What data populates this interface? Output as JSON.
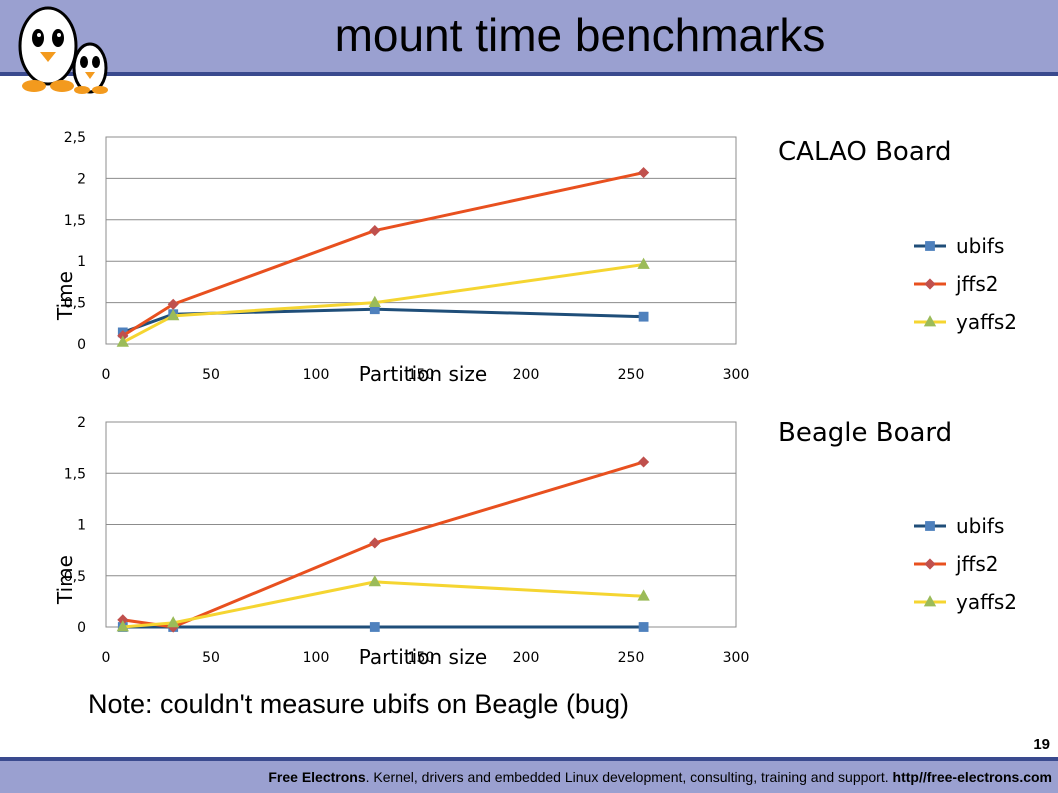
{
  "slide": {
    "title": "mount time benchmarks",
    "note": "Note: couldn't measure ubifs on Beagle (bug)",
    "slide_number": "19",
    "footer": {
      "brand": "Free Electrons",
      "text": ". Kernel, drivers and embedded Linux development, consulting, training and support. ",
      "url": "http//free-electrons.com"
    }
  },
  "colors": {
    "header_bg": "#9aa0d0",
    "header_rule": "#3a4a8e",
    "ubifs_line": "#1f4e79",
    "ubifs_marker": "#4f81bd",
    "jffs2_line": "#e8501f",
    "jffs2_marker": "#c0504d",
    "yaffs2_line": "#f5d531",
    "yaffs2_marker": "#9bbb59"
  },
  "chart_data": [
    {
      "type": "scatter",
      "board_title": "CALAO Board",
      "xlabel": "Partition size",
      "ylabel": "Time",
      "xlim": [
        0,
        300
      ],
      "ylim": [
        0,
        2.5
      ],
      "x_ticks": [
        "0",
        "50",
        "100",
        "150",
        "200",
        "250",
        "300"
      ],
      "y_ticks": [
        "0",
        "0,5",
        "1",
        "1,5",
        "2",
        "2,5"
      ],
      "grid": true,
      "legend_position": "right",
      "series": [
        {
          "name": "ubifs",
          "x": [
            8,
            32,
            128,
            256
          ],
          "y": [
            0.14,
            0.36,
            0.42,
            0.33
          ]
        },
        {
          "name": "jffs2",
          "x": [
            8,
            32,
            128,
            256
          ],
          "y": [
            0.1,
            0.48,
            1.37,
            2.07
          ]
        },
        {
          "name": "yaffs2",
          "x": [
            8,
            32,
            128,
            256
          ],
          "y": [
            0.02,
            0.34,
            0.5,
            0.96
          ]
        }
      ]
    },
    {
      "type": "scatter",
      "board_title": "Beagle Board",
      "xlabel": "Partition size",
      "ylabel": "Time",
      "xlim": [
        0,
        300
      ],
      "ylim": [
        0,
        2
      ],
      "x_ticks": [
        "0",
        "50",
        "100",
        "150",
        "200",
        "250",
        "300"
      ],
      "y_ticks": [
        "0",
        "0,5",
        "1",
        "1,5",
        "2"
      ],
      "grid": true,
      "legend_position": "right",
      "series": [
        {
          "name": "ubifs",
          "x": [
            8,
            32,
            128,
            256
          ],
          "y": [
            0,
            0,
            0,
            0
          ]
        },
        {
          "name": "jffs2",
          "x": [
            8,
            32,
            128,
            256
          ],
          "y": [
            0.07,
            0.0,
            0.82,
            1.61
          ]
        },
        {
          "name": "yaffs2",
          "x": [
            8,
            32,
            128,
            256
          ],
          "y": [
            0.0,
            0.04,
            0.44,
            0.3
          ]
        }
      ]
    }
  ]
}
